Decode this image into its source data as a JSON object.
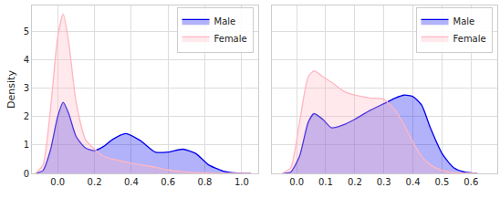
{
  "chart_data": [
    {
      "type": "area",
      "ylabel": "Density",
      "grid": true,
      "legend": "upper right",
      "xlim": [
        -0.14,
        1.09
      ],
      "xticks": [
        {
          "value": 0,
          "label": "0.0"
        },
        0.2,
        0.4,
        0.6,
        0.8,
        {
          "value": 1,
          "label": "1.0"
        }
      ],
      "ylim": [
        0,
        5.9
      ],
      "yticks": [
        0,
        1,
        2,
        3,
        4,
        5
      ],
      "x": [
        -0.12,
        -0.08,
        -0.04,
        0,
        0.03,
        0.06,
        0.1,
        0.15,
        0.2,
        0.25,
        0.3,
        0.37,
        0.45,
        0.53,
        0.6,
        0.68,
        0.75,
        0.82,
        0.9,
        0.98,
        1.05
      ],
      "series": [
        {
          "name": "Male",
          "color": "#0000ee",
          "values": [
            0,
            0.1,
            0.8,
            2.0,
            2.5,
            2.1,
            1.3,
            0.9,
            0.8,
            0.95,
            1.2,
            1.4,
            1.15,
            0.75,
            0.75,
            0.85,
            0.7,
            0.3,
            0.08,
            0.01,
            0
          ]
        },
        {
          "name": "Female",
          "color": "#ffb6c1",
          "values": [
            0,
            0.3,
            2.2,
            4.8,
            5.6,
            4.6,
            2.5,
            1.2,
            0.85,
            0.6,
            0.5,
            0.4,
            0.3,
            0.22,
            0.12,
            0.06,
            0.03,
            0.01,
            0,
            0,
            0
          ]
        }
      ]
    },
    {
      "type": "area",
      "grid": true,
      "legend": "upper right",
      "tick_labels": "x",
      "xlim": [
        -0.085,
        0.69
      ],
      "xticks": [
        {
          "value": 0,
          "label": "0.0"
        },
        0.1,
        0.2,
        0.3,
        0.4,
        0.5,
        0.6
      ],
      "ylim": [
        0,
        5.9
      ],
      "yticks": [
        0,
        1,
        2,
        3,
        4,
        5
      ],
      "x": [
        -0.05,
        -0.02,
        0.01,
        0.04,
        0.06,
        0.09,
        0.12,
        0.16,
        0.2,
        0.25,
        0.3,
        0.34,
        0.37,
        0.4,
        0.43,
        0.46,
        0.5,
        0.54,
        0.58,
        0.62
      ],
      "series": [
        {
          "name": "Male",
          "color": "#0000ee",
          "values": [
            0,
            0.05,
            0.6,
            1.8,
            2.1,
            1.9,
            1.6,
            1.7,
            1.9,
            2.2,
            2.45,
            2.65,
            2.75,
            2.7,
            2.4,
            1.6,
            0.7,
            0.2,
            0.04,
            0
          ]
        },
        {
          "name": "Female",
          "color": "#ffb6c1",
          "values": [
            0,
            0.2,
            1.8,
            3.4,
            3.6,
            3.4,
            3.2,
            2.9,
            2.75,
            2.65,
            2.6,
            2.2,
            1.7,
            1.1,
            0.6,
            0.3,
            0.1,
            0.03,
            0.01,
            0
          ]
        }
      ]
    }
  ]
}
